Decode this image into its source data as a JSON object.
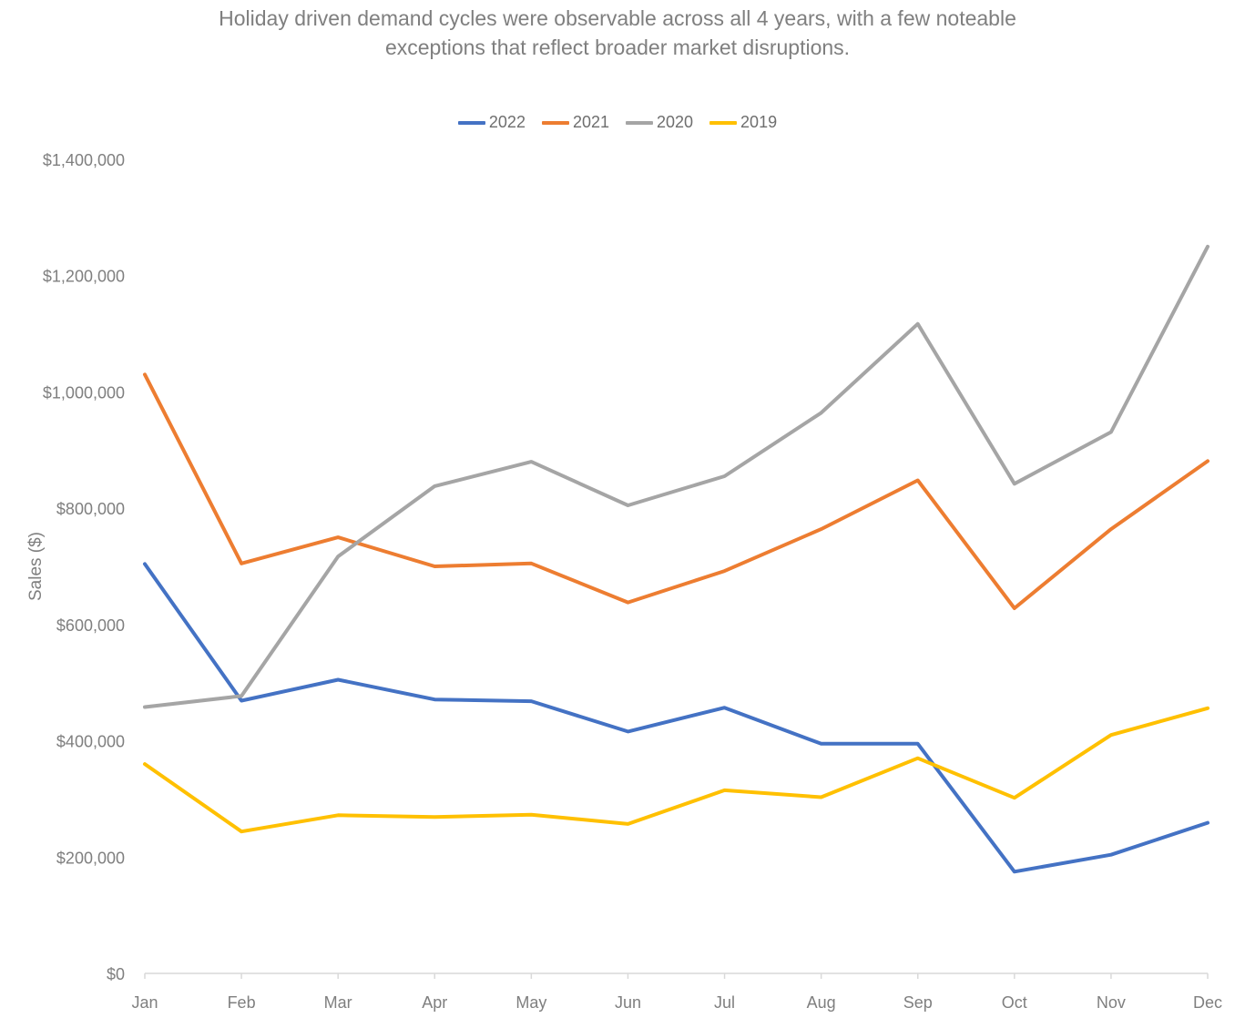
{
  "chart_data": {
    "type": "line",
    "title_lines": [
      "Holiday driven demand cycles were observable across all 4 years, with a few noteable",
      "exceptions that reflect broader market disruptions."
    ],
    "xlabel": "",
    "ylabel": "Sales ($)",
    "categories": [
      "Jan",
      "Feb",
      "Mar",
      "Apr",
      "May",
      "Jun",
      "Jul",
      "Aug",
      "Sep",
      "Oct",
      "Nov",
      "Dec"
    ],
    "ylim": [
      0,
      1400000
    ],
    "yticks": [
      0,
      200000,
      400000,
      600000,
      800000,
      1000000,
      1200000,
      1400000
    ],
    "ytick_labels": [
      "$0",
      "$200,000",
      "$400,000",
      "$600,000",
      "$800,000",
      "$1,000,000",
      "$1,200,000",
      "$1,400,000"
    ],
    "grid": false,
    "legend_position": "top",
    "series": [
      {
        "name": "2022",
        "color": "#4472C4",
        "values": [
          704000,
          469000,
          505000,
          471000,
          468000,
          416000,
          457000,
          395000,
          395000,
          175000,
          204000,
          259000
        ]
      },
      {
        "name": "2021",
        "color": "#ED7D31",
        "values": [
          1030000,
          705000,
          750000,
          700000,
          705000,
          638000,
          692000,
          764000,
          848000,
          628000,
          764000,
          881000
        ]
      },
      {
        "name": "2020",
        "color": "#A5A5A5",
        "values": [
          458000,
          477000,
          717000,
          838000,
          880000,
          805000,
          855000,
          964000,
          1117000,
          842000,
          931000,
          1250000
        ]
      },
      {
        "name": "2019",
        "color": "#FFC000",
        "values": [
          360000,
          244000,
          272000,
          269000,
          273000,
          257000,
          315000,
          303000,
          370000,
          302000,
          410000,
          456000
        ]
      }
    ]
  }
}
